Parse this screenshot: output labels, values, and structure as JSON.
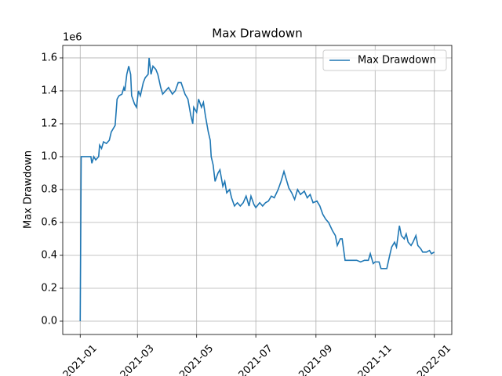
{
  "chart_data": {
    "type": "line",
    "title": "Max Drawdown",
    "ylabel": "Max Drawdown",
    "y_offset_label": "1e6",
    "x": [
      18628,
      18629,
      18639,
      18640,
      18642,
      18644,
      18647,
      18648,
      18650,
      18652,
      18655,
      18658,
      18660,
      18664,
      18666,
      18668,
      18671,
      18673,
      18674,
      18676,
      18678,
      18680,
      18681,
      18684,
      18686,
      18688,
      18690,
      18693,
      18695,
      18698,
      18699,
      18701,
      18703,
      18706,
      18708,
      18711,
      18713,
      18716,
      18719,
      18723,
      18726,
      18729,
      18732,
      18736,
      18739,
      18742,
      18744,
      18745,
      18748,
      18750,
      18753,
      18755,
      18757,
      18760,
      18762,
      18763,
      18765,
      18767,
      18770,
      18772,
      18775,
      18777,
      18779,
      18782,
      18784,
      18787,
      18790,
      18793,
      18796,
      18799,
      18802,
      18804,
      18807,
      18809,
      18813,
      18816,
      18819,
      18822,
      18825,
      18828,
      18832,
      18835,
      18838,
      18840,
      18843,
      18846,
      18849,
      18852,
      18855,
      18859,
      18862,
      18865,
      18868,
      18872,
      18875,
      18878,
      18881,
      18884,
      18888,
      18891,
      18893,
      18896,
      18898,
      18901,
      18905,
      18909,
      18913,
      18917,
      18921,
      18925,
      18927,
      18930,
      18932,
      18936,
      18938,
      18941,
      18944,
      18947,
      18949,
      18952,
      18954,
      18957,
      18959,
      18962,
      18964,
      18966,
      18969,
      18971,
      18974,
      18976,
      18979,
      18981,
      18985,
      18988,
      18990,
      18993
    ],
    "series": [
      {
        "name": "Max Drawdown",
        "color": "#1f77b4",
        "values": [
          0,
          1.0,
          1.0,
          0.96,
          1.0,
          0.98,
          1.0,
          1.07,
          1.05,
          1.09,
          1.08,
          1.1,
          1.15,
          1.19,
          1.35,
          1.37,
          1.38,
          1.42,
          1.4,
          1.5,
          1.55,
          1.5,
          1.37,
          1.32,
          1.3,
          1.4,
          1.37,
          1.45,
          1.48,
          1.5,
          1.6,
          1.5,
          1.55,
          1.53,
          1.5,
          1.42,
          1.38,
          1.4,
          1.42,
          1.38,
          1.4,
          1.45,
          1.45,
          1.38,
          1.35,
          1.25,
          1.2,
          1.3,
          1.27,
          1.35,
          1.3,
          1.33,
          1.25,
          1.15,
          1.1,
          1.0,
          0.95,
          0.85,
          0.9,
          0.92,
          0.82,
          0.85,
          0.78,
          0.8,
          0.75,
          0.7,
          0.72,
          0.7,
          0.72,
          0.76,
          0.7,
          0.76,
          0.71,
          0.69,
          0.72,
          0.7,
          0.72,
          0.73,
          0.76,
          0.75,
          0.8,
          0.85,
          0.91,
          0.87,
          0.81,
          0.78,
          0.74,
          0.8,
          0.77,
          0.79,
          0.75,
          0.77,
          0.72,
          0.73,
          0.7,
          0.65,
          0.62,
          0.6,
          0.55,
          0.52,
          0.46,
          0.5,
          0.5,
          0.37,
          0.37,
          0.37,
          0.37,
          0.36,
          0.37,
          0.37,
          0.41,
          0.35,
          0.36,
          0.36,
          0.32,
          0.32,
          0.32,
          0.4,
          0.45,
          0.48,
          0.45,
          0.58,
          0.52,
          0.5,
          0.53,
          0.48,
          0.46,
          0.48,
          0.52,
          0.46,
          0.44,
          0.42,
          0.42,
          0.43,
          0.41,
          0.42
        ]
      }
    ],
    "xlim": [
      18610,
      19011
    ],
    "xticks": [
      {
        "value": 18628,
        "label": "2021-01"
      },
      {
        "value": 18687,
        "label": "2021-03"
      },
      {
        "value": 18748,
        "label": "2021-05"
      },
      {
        "value": 18809,
        "label": "2021-07"
      },
      {
        "value": 18871,
        "label": "2021-09"
      },
      {
        "value": 18932,
        "label": "2021-11"
      },
      {
        "value": 18993,
        "label": "2022-01"
      }
    ],
    "ylim": [
      -0.081,
      1.676
    ],
    "yticks": [
      {
        "value": 0,
        "label": "0.0"
      },
      {
        "value": 0.2,
        "label": "0.2"
      },
      {
        "value": 0.4,
        "label": "0.4"
      },
      {
        "value": 0.6,
        "label": "0.6"
      },
      {
        "value": 0.8,
        "label": "0.8"
      },
      {
        "value": 1,
        "label": "1.0"
      },
      {
        "value": 1.2,
        "label": "1.2"
      },
      {
        "value": 1.4,
        "label": "1.4"
      },
      {
        "value": 1.6,
        "label": "1.6"
      }
    ],
    "grid": true,
    "legend": "upper right"
  }
}
